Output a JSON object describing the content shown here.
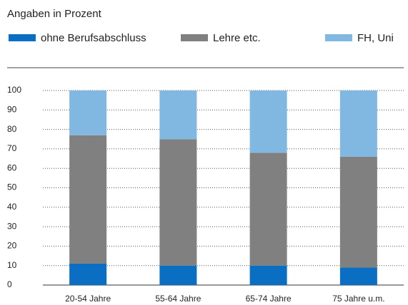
{
  "chart_data": {
    "type": "stacked_bar",
    "title": "Angaben in Prozent",
    "categories": [
      "20-54 Jahre",
      "55-64 Jahre",
      "65-74 Jahre",
      "75 Jahre u.m."
    ],
    "series": [
      {
        "name": "ohne Berufsabschluss",
        "color": "#0a6fc2",
        "values": [
          11,
          10,
          10,
          9
        ]
      },
      {
        "name": "Lehre etc.",
        "color": "#808080",
        "values": [
          66,
          65,
          58,
          57
        ]
      },
      {
        "name": "FH, Uni",
        "color": "#80b8e2",
        "values": [
          23,
          25,
          32,
          34
        ]
      }
    ],
    "ylim": [
      0,
      100
    ],
    "yticks": [
      0,
      10,
      20,
      30,
      40,
      50,
      60,
      70,
      80,
      90,
      100
    ],
    "grid": true
  }
}
